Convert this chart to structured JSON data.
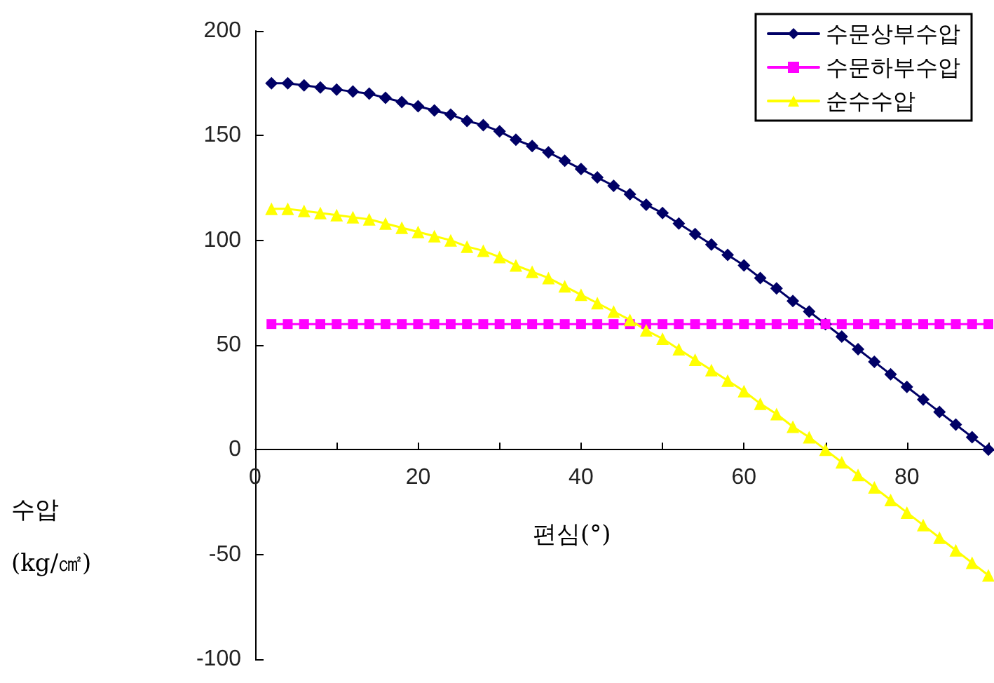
{
  "chart_data": {
    "type": "line",
    "xlabel": "편심(°)",
    "ylabel": "수압\n(kg/㎠)",
    "x": [
      2,
      4,
      6,
      8,
      10,
      12,
      14,
      16,
      18,
      20,
      22,
      24,
      26,
      28,
      30,
      32,
      34,
      36,
      38,
      40,
      42,
      44,
      46,
      48,
      50,
      52,
      54,
      56,
      58,
      60,
      62,
      64,
      66,
      68,
      70,
      72,
      74,
      76,
      78,
      80,
      82,
      84,
      86,
      88,
      90
    ],
    "series": [
      {
        "name": "수문상부수압",
        "color": "#000066",
        "marker": "diamond",
        "values": [
          175,
          175,
          174,
          173,
          172,
          171,
          170,
          168,
          166,
          164,
          162,
          160,
          157,
          155,
          152,
          148,
          145,
          142,
          138,
          134,
          130,
          126,
          122,
          117,
          113,
          108,
          103,
          98,
          93,
          88,
          82,
          77,
          71,
          66,
          60,
          54,
          48,
          42,
          36,
          30,
          24,
          18,
          12,
          6,
          0
        ]
      },
      {
        "name": "수문하부수압",
        "color": "#ff00ff",
        "marker": "square",
        "values": [
          60,
          60,
          60,
          60,
          60,
          60,
          60,
          60,
          60,
          60,
          60,
          60,
          60,
          60,
          60,
          60,
          60,
          60,
          60,
          60,
          60,
          60,
          60,
          60,
          60,
          60,
          60,
          60,
          60,
          60,
          60,
          60,
          60,
          60,
          60,
          60,
          60,
          60,
          60,
          60,
          60,
          60,
          60,
          60,
          60
        ]
      },
      {
        "name": "순수수압",
        "color": "#ffff00",
        "marker": "triangle",
        "values": [
          115,
          115,
          114,
          113,
          112,
          111,
          110,
          108,
          106,
          104,
          102,
          100,
          97,
          95,
          92,
          88,
          85,
          82,
          78,
          74,
          70,
          66,
          62,
          57,
          53,
          48,
          43,
          38,
          33,
          28,
          22,
          17,
          11,
          6,
          0,
          -6,
          -12,
          -18,
          -24,
          -30,
          -36,
          -42,
          -48,
          -54,
          -60
        ]
      }
    ],
    "xlim": [
      0,
      90
    ],
    "xticks": [
      0,
      {
        "value": 10,
        "label": null
      },
      20,
      {
        "value": 30,
        "label": null
      },
      40,
      {
        "value": 50,
        "label": null
      },
      60,
      {
        "value": 70,
        "label": null
      },
      80,
      {
        "value": 90,
        "label": null
      }
    ],
    "ylim": [
      -100,
      200
    ],
    "yticks": [
      -100,
      -50,
      0,
      50,
      100,
      150,
      200
    ],
    "legend": "top right",
    "line_style": "solid"
  }
}
